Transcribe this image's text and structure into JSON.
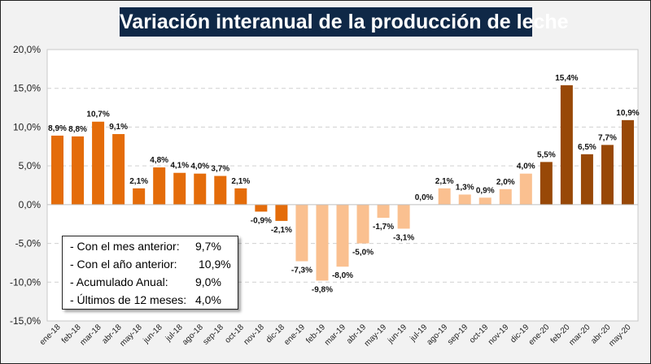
{
  "chart_data": {
    "type": "bar",
    "title": "Variación interanual de la producción de leche",
    "xlabel": "",
    "ylabel": "",
    "ylim": [
      -15,
      20
    ],
    "yticks": [
      -15,
      -10,
      -5,
      0,
      5,
      10,
      15,
      20
    ],
    "ytick_labels": [
      "-15,0%",
      "-10,0%",
      "-5,0%",
      "0,0%",
      "5,0%",
      "10,0%",
      "15,0%",
      "20,0%"
    ],
    "grid": true,
    "categories": [
      "ene-18",
      "feb-18",
      "mar-18",
      "abr-18",
      "may-18",
      "jun-18",
      "jul-18",
      "ago-18",
      "sep-18",
      "oct-18",
      "nov-18",
      "dic-18",
      "ene-19",
      "feb-19",
      "mar-19",
      "abr-19",
      "may-19",
      "jun-19",
      "jul-19",
      "ago-19",
      "sep-19",
      "oct-19",
      "nov-19",
      "dic-19",
      "ene-20",
      "feb-20",
      "mar-20",
      "abr-20",
      "may-20"
    ],
    "values": [
      8.9,
      8.8,
      10.7,
      9.1,
      2.1,
      4.8,
      4.1,
      4.0,
      3.7,
      2.1,
      -0.9,
      -2.1,
      -7.3,
      -9.8,
      -8.0,
      -5.0,
      -1.7,
      -3.1,
      0.0,
      2.1,
      1.3,
      0.9,
      2.0,
      4.0,
      5.5,
      15.4,
      6.5,
      7.7,
      10.9
    ],
    "data_labels": [
      "8,9%",
      "8,8%",
      "10,7%",
      "9,1%",
      "2,1%",
      "4,8%",
      "4,1%",
      "4,0%",
      "3,7%",
      "2,1%",
      "-0,9%",
      "-2,1%",
      "-7,3%",
      "-9,8%",
      "-8,0%",
      "-5,0%",
      "-1,7%",
      "-3,1%",
      "0,0%",
      "2,1%",
      "1,3%",
      "0,9%",
      "2,0%",
      "4,0%",
      "5,5%",
      "15,4%",
      "6,5%",
      "7,7%",
      "10,9%"
    ],
    "colors": {
      "2018": "#e46c0a",
      "2019": "#fac090",
      "2020": "#984807"
    }
  },
  "legend_box": {
    "rows": [
      {
        "label": "- Con el mes anterior:",
        "value": "9,7%"
      },
      {
        "label": "- Con el año anterior:",
        "value": "10,9%"
      },
      {
        "label": "- Acumulado Anual:",
        "value": "9,0%"
      },
      {
        "label": "- Últimos de 12 meses:",
        "value": "4,0%"
      }
    ]
  }
}
